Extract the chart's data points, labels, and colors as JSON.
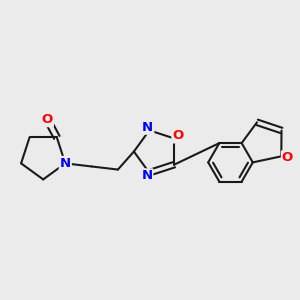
{
  "background_color": "#ebebeb",
  "bond_color": "#1a1a1a",
  "atom_colors": {
    "O": "#ff0000",
    "N": "#0000ff",
    "C": "#1a1a1a"
  },
  "bond_width": 1.5,
  "font_size_atoms": 9.5
}
